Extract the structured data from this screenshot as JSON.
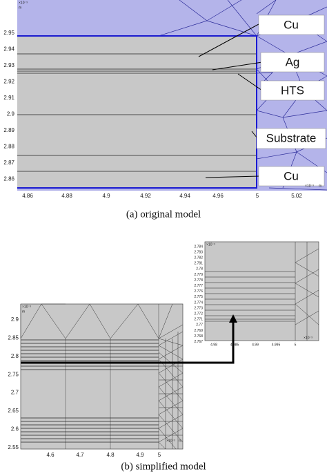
{
  "panel_a": {
    "y_ticks": [
      "2.95",
      "2.94",
      "2.93",
      "2.92",
      "2.91",
      "2.9",
      "2.89",
      "2.88",
      "2.87",
      "2.86"
    ],
    "x_ticks": [
      "4.86",
      "4.88",
      "4.9",
      "4.92",
      "4.94",
      "4.96",
      "5",
      "5.02"
    ],
    "y_exponent": "×10⁻³",
    "y_unit": "m",
    "x_exponent": "×10⁻³",
    "x_unit": "m",
    "labels": [
      "Cu",
      "Ag",
      "HTS",
      "Substrate",
      "Cu"
    ],
    "caption": "(a)  original model"
  },
  "panel_b": {
    "y_ticks": [
      "2.9",
      "2.85",
      "2.8",
      "2.75",
      "2.7",
      "2.65",
      "2.6",
      "2.55"
    ],
    "x_ticks": [
      "4.6",
      "4.7",
      "4.8",
      "4.9",
      "5"
    ],
    "y_exponent": "×10⁻³",
    "y_unit": "m",
    "x_exponent": "×10⁻³",
    "x_unit": "m",
    "caption": "(b)  simplified model"
  },
  "inset": {
    "y_ticks": [
      "2.784",
      "2.783",
      "2.782",
      "2.781",
      "2.78",
      "2.779",
      "2.778",
      "2.777",
      "2.776",
      "2.775",
      "2.774",
      "2.773",
      "2.772",
      "2.771",
      "2.77",
      "2.769",
      "2.768",
      "2.767"
    ],
    "x_ticks": [
      "4.98",
      "4.985",
      "4.99",
      "4.995",
      "5"
    ],
    "y_exponent": "×10⁻³",
    "x_exponent": "×10⁻³"
  }
}
